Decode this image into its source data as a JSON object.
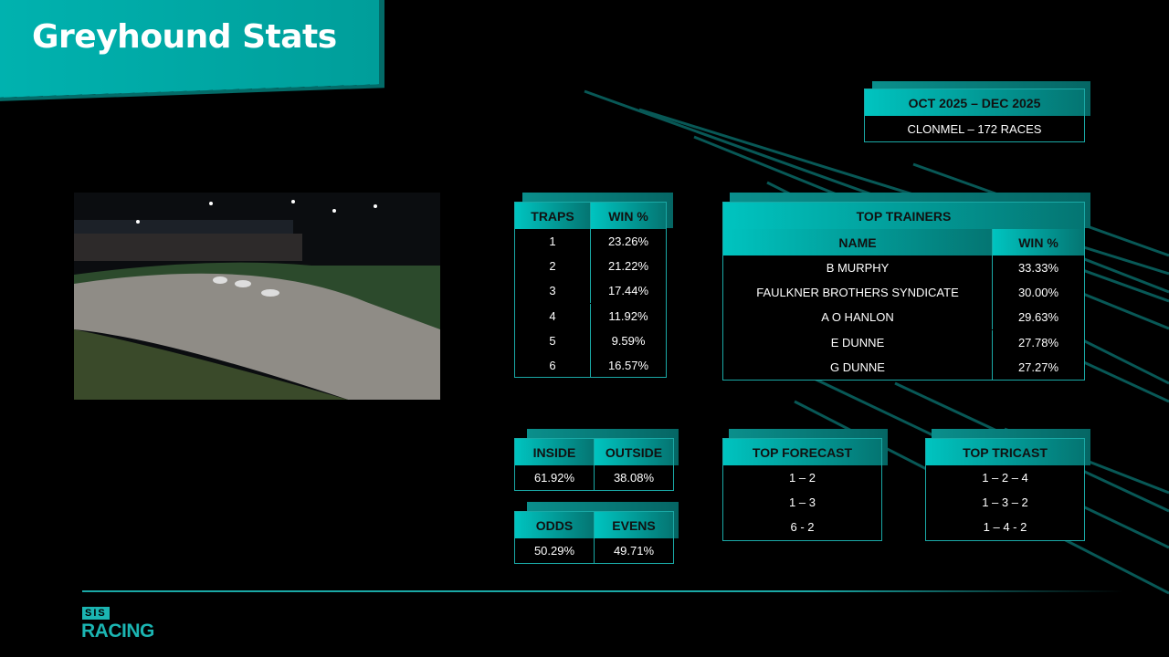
{
  "title": "Greyhound Stats",
  "period": {
    "range": "OCT 2025 – DEC 2025",
    "track": "CLONMEL –  172 RACES"
  },
  "traps": {
    "headers": [
      "TRAPS",
      "WIN %"
    ],
    "rows": [
      [
        "1",
        "23.26%"
      ],
      [
        "2",
        "21.22%"
      ],
      [
        "3",
        "17.44%"
      ],
      [
        "4",
        "11.92%"
      ],
      [
        "5",
        "9.59%"
      ],
      [
        "6",
        "16.57%"
      ]
    ]
  },
  "trainers": {
    "title": "TOP TRAINERS",
    "headers": [
      "NAME",
      "WIN %"
    ],
    "rows": [
      [
        "B MURPHY",
        "33.33%"
      ],
      [
        "FAULKNER BROTHERS SYNDICATE",
        "30.00%"
      ],
      [
        "A O HANLON",
        "29.63%"
      ],
      [
        "E DUNNE",
        "27.78%"
      ],
      [
        "G DUNNE",
        "27.27%"
      ]
    ]
  },
  "inside_outside": {
    "headers": [
      "INSIDE",
      "OUTSIDE"
    ],
    "values": [
      "61.92%",
      "38.08%"
    ]
  },
  "odds_evens": {
    "headers": [
      "ODDS",
      "EVENS"
    ],
    "values": [
      "50.29%",
      "49.71%"
    ]
  },
  "forecast": {
    "title": "TOP FORECAST",
    "rows": [
      "1 – 2",
      "1 – 3",
      "6 - 2"
    ]
  },
  "tricast": {
    "title": "TOP TRICAST",
    "rows": [
      "1 – 2 – 4",
      "1 – 3 – 2",
      "1 – 4 - 2"
    ]
  },
  "logo": {
    "top": "SIS",
    "bottom": "RACING"
  },
  "colors": {
    "accent": "#00b3b0",
    "border": "#1aa9a6"
  }
}
